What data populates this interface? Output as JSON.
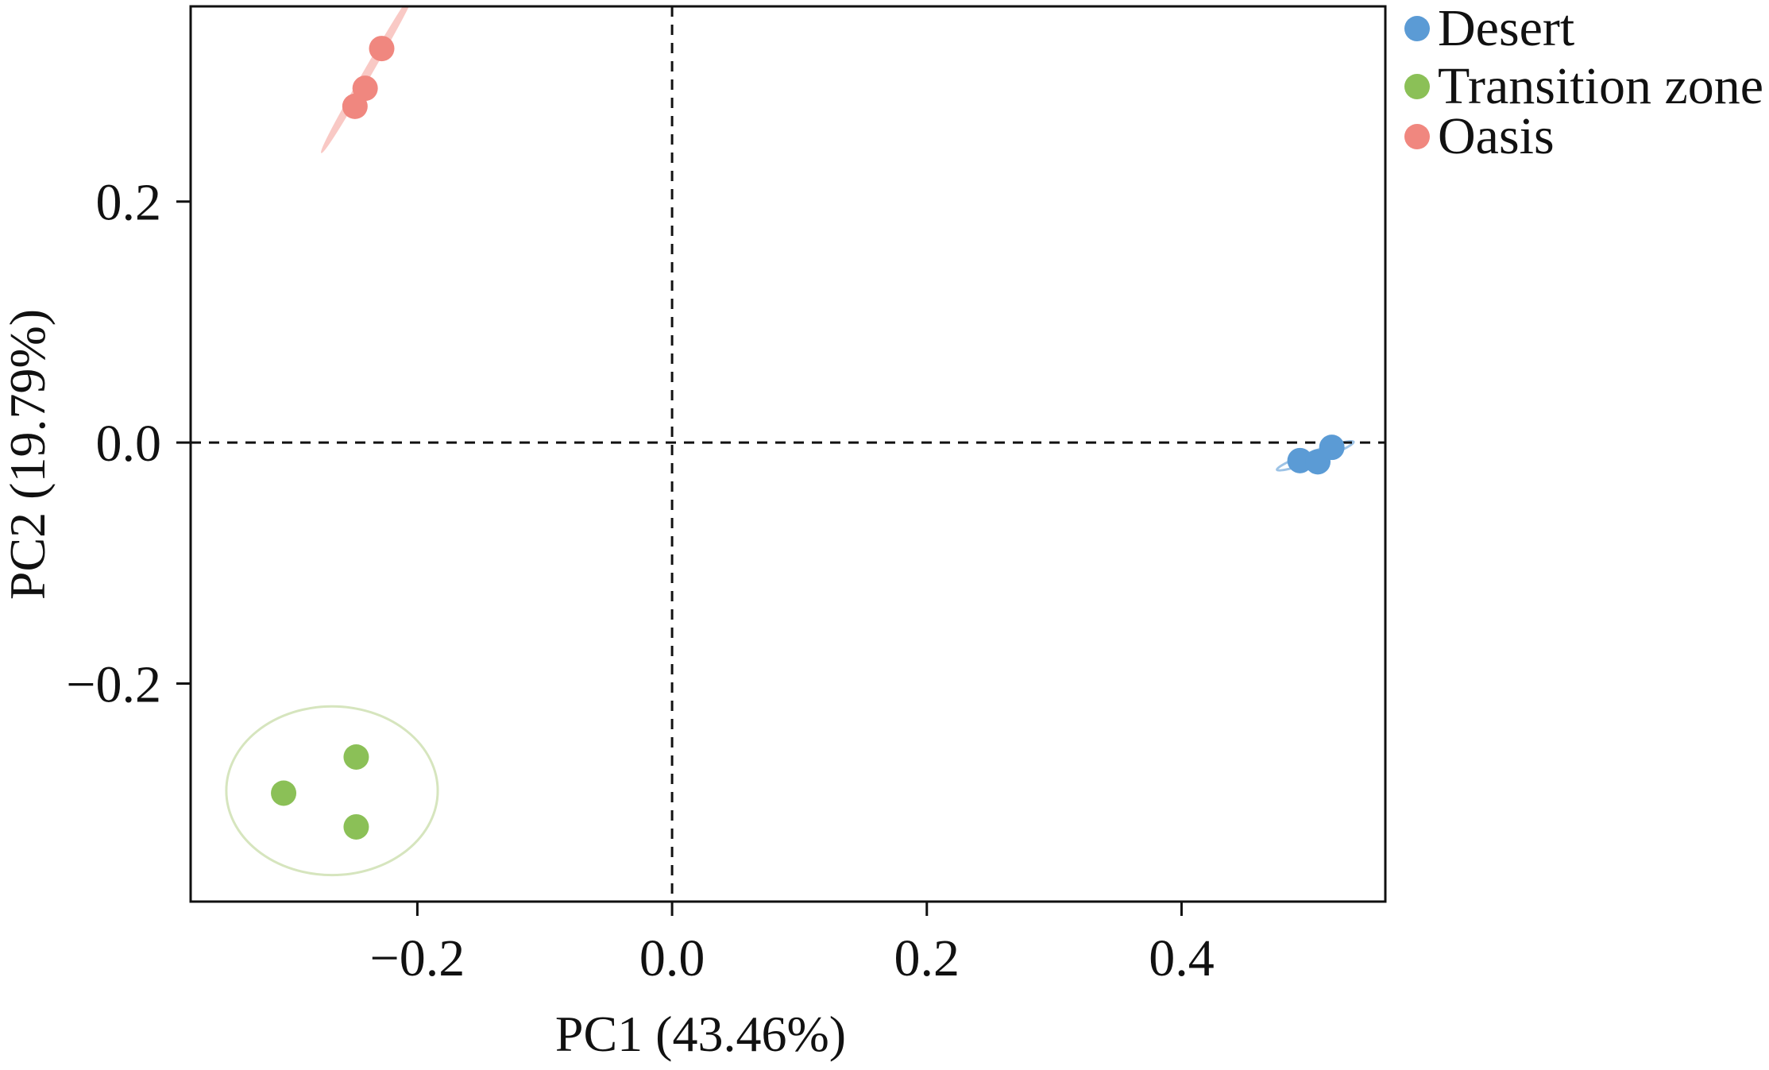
{
  "chart_data": {
    "type": "scatter",
    "title": "",
    "xlabel": "PC1 (43.46%)",
    "ylabel": "PC2 (19.79%)",
    "xlim": [
      -0.378,
      0.56
    ],
    "ylim": [
      -0.381,
      0.362
    ],
    "x_ticks": [
      -0.2,
      0.0,
      0.2,
      0.4
    ],
    "x_tick_labels": [
      "−0.2",
      "0.0",
      "0.2",
      "0.4"
    ],
    "y_ticks": [
      -0.2,
      0.0,
      0.2
    ],
    "y_tick_labels": [
      "−0.2",
      "0.0",
      "0.2"
    ],
    "reference_lines": {
      "x": 0.0,
      "y": 0.0,
      "style": "dashed"
    },
    "grid": false,
    "legend_position": "right-top",
    "series": [
      {
        "name": "Desert",
        "color": "#5B9BD5",
        "ellipse_color": "#9DC3E6",
        "points": [
          {
            "x": 0.493,
            "y": -0.015
          },
          {
            "x": 0.507,
            "y": -0.016
          },
          {
            "x": 0.518,
            "y": -0.004
          }
        ],
        "ellipse": {
          "cx": 0.505,
          "cy": -0.011,
          "rx": 0.032,
          "ry": 0.004,
          "angle_deg": -20
        }
      },
      {
        "name": "Transition zone",
        "color": "#8BC057",
        "ellipse_color": "#D6E5BE",
        "points": [
          {
            "x": -0.305,
            "y": -0.291
          },
          {
            "x": -0.248,
            "y": -0.261
          },
          {
            "x": -0.248,
            "y": -0.319
          }
        ],
        "ellipse": {
          "cx": -0.267,
          "cy": -0.289,
          "rx": 0.083,
          "ry": 0.07,
          "angle_deg": 0
        }
      },
      {
        "name": "Oasis",
        "color": "#F0877F",
        "ellipse_color": "#F9C9C5",
        "points": [
          {
            "x": -0.228,
            "y": 0.327
          },
          {
            "x": -0.241,
            "y": 0.294
          },
          {
            "x": -0.249,
            "y": 0.279
          }
        ],
        "ellipse": {
          "cx": -0.239,
          "cy": 0.307,
          "rx": 0.072,
          "ry": 0.0025,
          "angle_deg": -60
        }
      }
    ]
  }
}
